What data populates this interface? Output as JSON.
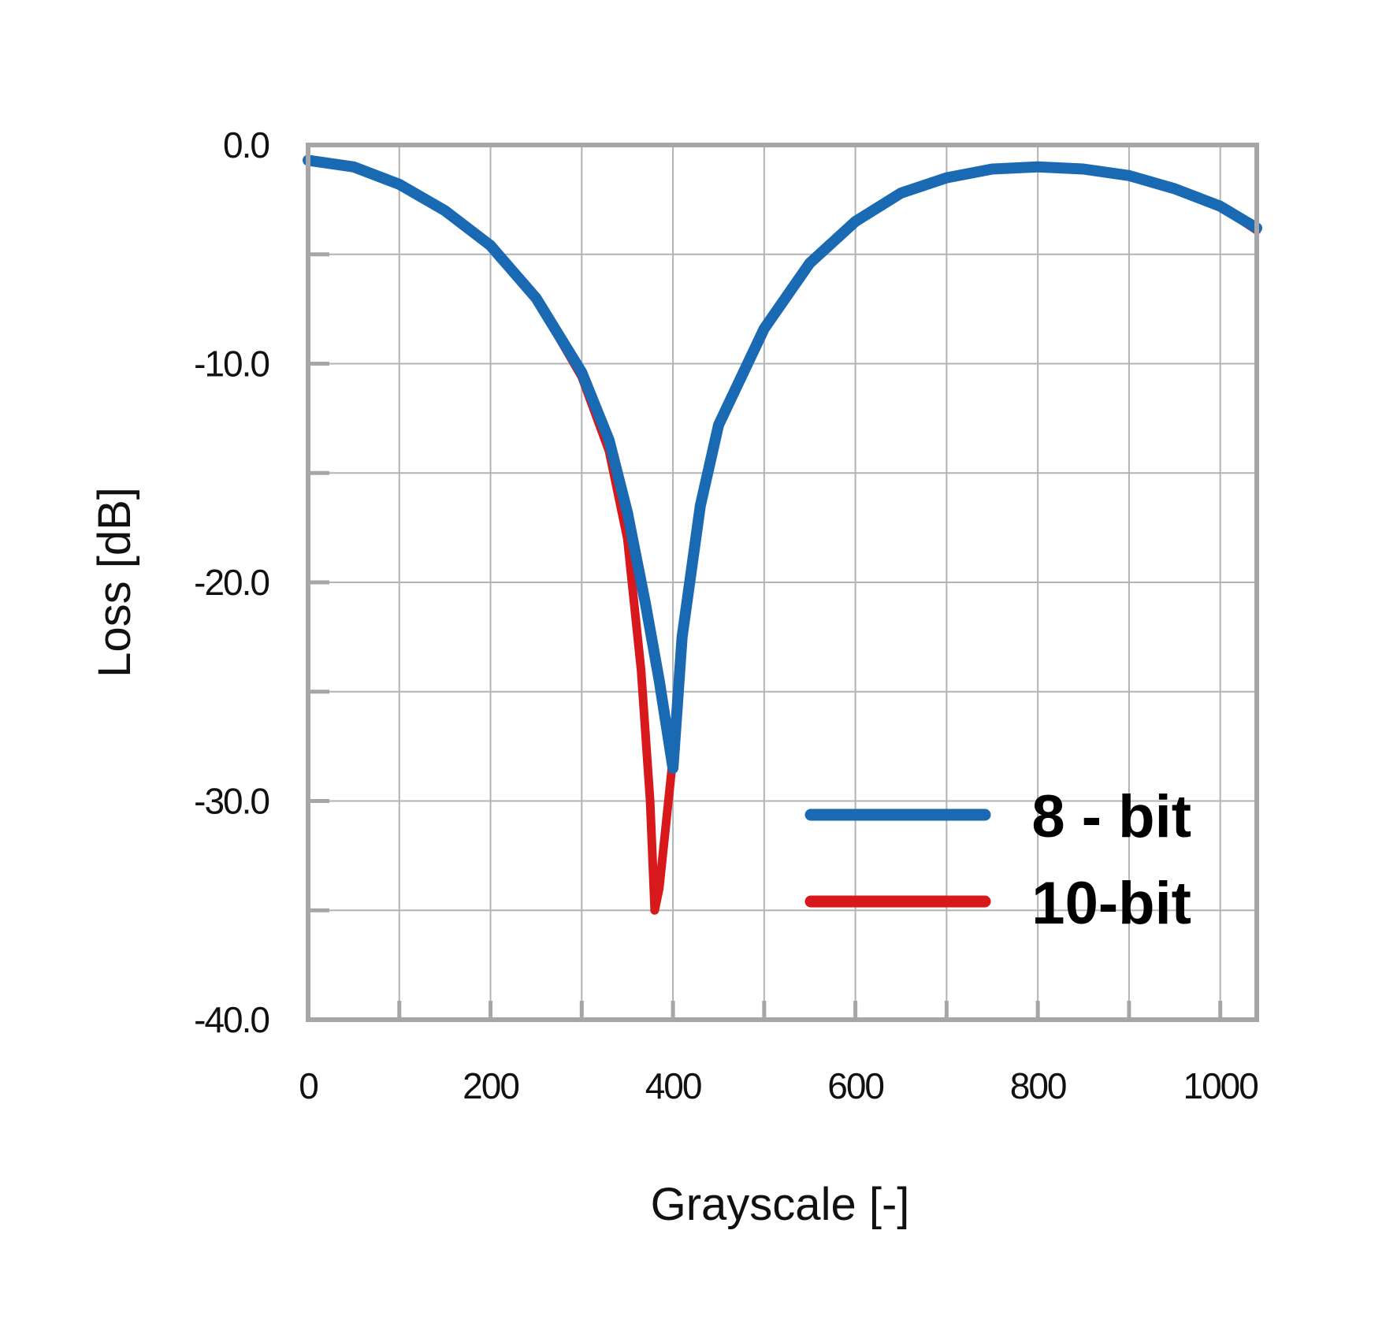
{
  "chart_data": {
    "type": "line",
    "xlabel": "Grayscale [-]",
    "ylabel": "Loss [dB]",
    "xlim": [
      0,
      1040
    ],
    "ylim": [
      -40,
      0
    ],
    "x_ticks": [
      0,
      200,
      400,
      600,
      800,
      1000
    ],
    "x_tick_labels": [
      "0",
      "200",
      "400",
      "600",
      "800",
      "1000"
    ],
    "y_ticks": [
      0,
      -10,
      -20,
      -30,
      -40
    ],
    "y_tick_labels": [
      "0.0",
      "-10.0",
      "-20.0",
      "-30.0",
      "-40.0"
    ],
    "x_grid_step": 100,
    "y_grid_step": 5,
    "grid": true,
    "legend_position": "bottom-right",
    "series": [
      {
        "name": "10-bit",
        "color": "#d7191c",
        "x": [
          0,
          50,
          100,
          150,
          200,
          250,
          300,
          330,
          350,
          365,
          375,
          380,
          385,
          390,
          395,
          400,
          410,
          430,
          450,
          500,
          550,
          600,
          650,
          700,
          750,
          800,
          850,
          900,
          950,
          1000,
          1040
        ],
        "y": [
          -0.7,
          -1.0,
          -1.8,
          -3.0,
          -4.6,
          -7.0,
          -10.6,
          -14.0,
          -18.0,
          -24.0,
          -30.0,
          -35.0,
          -34.0,
          -32.0,
          -30.0,
          -28.0,
          -22.5,
          -16.5,
          -12.8,
          -8.4,
          -5.4,
          -3.5,
          -2.2,
          -1.5,
          -1.1,
          -1.0,
          -1.1,
          -1.4,
          -2.0,
          -2.8,
          -3.9
        ]
      },
      {
        "name": "8-bit",
        "color": "#1a6ab3",
        "x": [
          0,
          50,
          100,
          150,
          200,
          250,
          300,
          330,
          350,
          370,
          385,
          400,
          410,
          430,
          450,
          500,
          550,
          600,
          650,
          700,
          750,
          800,
          850,
          900,
          950,
          1000,
          1040
        ],
        "y": [
          -0.7,
          -1.0,
          -1.8,
          -3.0,
          -4.6,
          -7.0,
          -10.4,
          -13.5,
          -16.8,
          -21.0,
          -24.5,
          -28.5,
          -22.5,
          -16.5,
          -12.8,
          -8.4,
          -5.4,
          -3.5,
          -2.2,
          -1.5,
          -1.1,
          -1.0,
          -1.1,
          -1.4,
          -2.0,
          -2.8,
          -3.8
        ]
      }
    ],
    "legend": [
      {
        "label": "8 - bit",
        "color": "#1a6ab3"
      },
      {
        "label": "10-bit",
        "color": "#d7191c"
      }
    ]
  }
}
